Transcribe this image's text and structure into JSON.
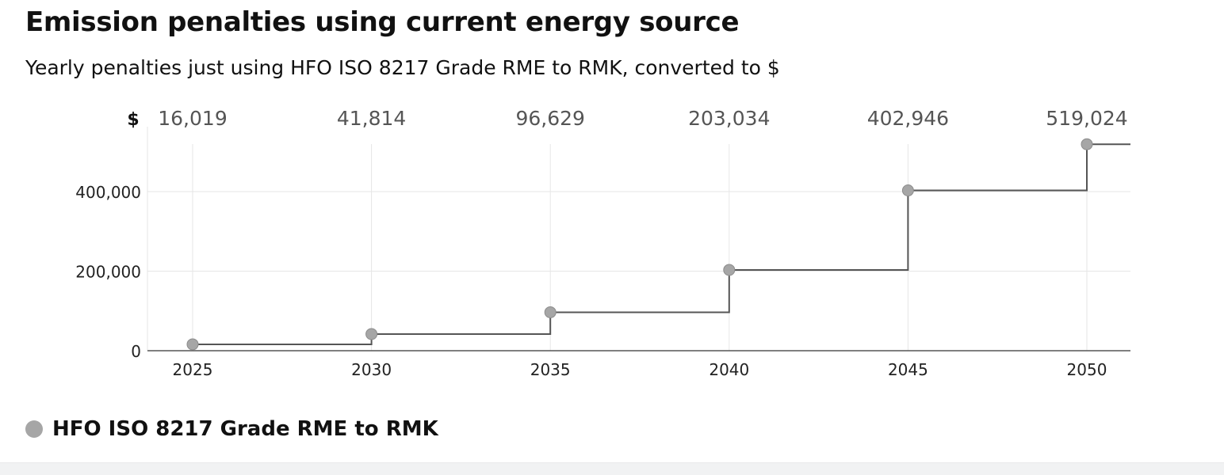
{
  "chart_data": {
    "type": "line",
    "step": true,
    "title": "Emission penalties using current energy source",
    "subtitle": "Yearly penalties just using HFO ISO 8217 Grade RME to RMK, converted to $",
    "currency_symbol": "$",
    "x": [
      2025,
      2030,
      2035,
      2040,
      2045,
      2050
    ],
    "xlim": [
      2025,
      2051.5
    ],
    "ylim": [
      0,
      550000
    ],
    "y_ticks": [
      0,
      200000,
      400000
    ],
    "y_tick_labels": [
      "0",
      "200,000",
      "400,000"
    ],
    "x_tick_labels": [
      "2025",
      "2030",
      "2035",
      "2040",
      "2045",
      "2050"
    ],
    "value_labels": [
      "16,019",
      "41,814",
      "96,629",
      "203,034",
      "402,946",
      "519,024"
    ],
    "grid": true,
    "legend_position": "bottom-left",
    "series": [
      {
        "name": "HFO ISO 8217 Grade RME to RMK",
        "color": "#a6a6a6",
        "line_color": "#555555",
        "values": [
          16019,
          41814,
          96629,
          203034,
          402946,
          519024
        ]
      }
    ]
  }
}
